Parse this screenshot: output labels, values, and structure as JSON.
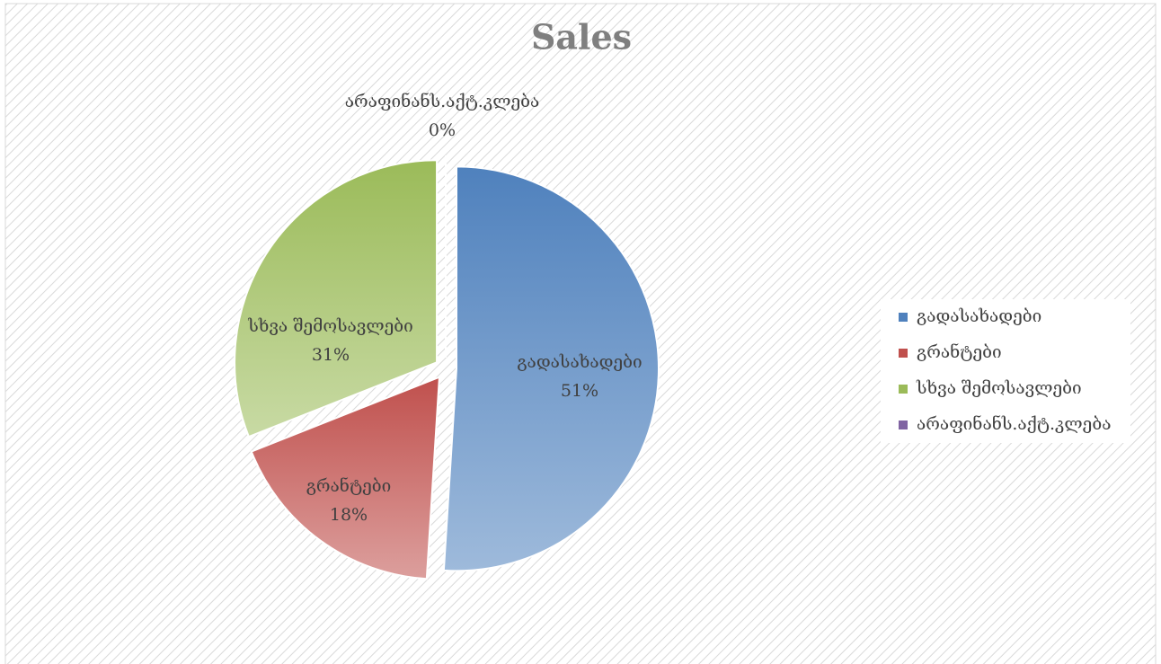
{
  "chart_data": {
    "type": "pie",
    "title": "Sales",
    "categories": [
      "გადასახადები",
      "გრანტები",
      "სხვა შემოსავლები",
      "არაფინანს.აქტ.კლება"
    ],
    "values": [
      51,
      18,
      31,
      0
    ],
    "value_labels": [
      "51%",
      "18%",
      "31%",
      "0%"
    ],
    "colors": [
      "#4f81bd",
      "#c0504d",
      "#9bbb59",
      "#8064a2"
    ],
    "legend": "right"
  }
}
